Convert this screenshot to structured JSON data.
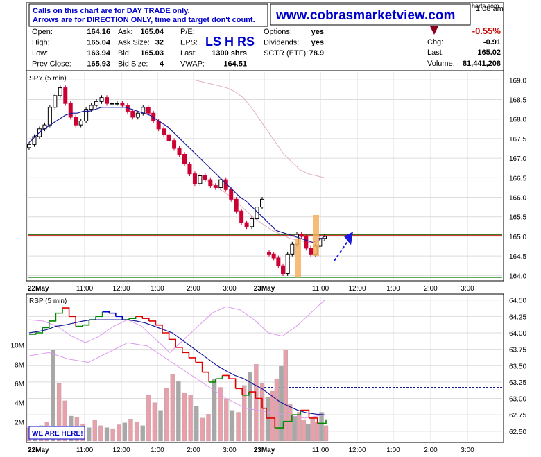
{
  "header": {
    "notice_line1": "Calls on this chart are for DAY TRADE only.",
    "notice_line2": "Arrows are for DIRECTION ONLY, time and target don't count.",
    "website": "www.cobrasmarketview.com",
    "time_fragment": "1:08 am",
    "brand_fragment": "harts.com",
    "pct_change": "-0.55%",
    "chg_label": "Chg:",
    "chg_value": "-0.91",
    "last_label": "Last:",
    "last_value": "165.02",
    "volume_label": "Volume:",
    "volume_value": "81,441,208",
    "pattern_text": "LS H RS",
    "quotes": [
      {
        "label": "Open:",
        "value": "164.16"
      },
      {
        "label": "High:",
        "value": "165.04"
      },
      {
        "label": "Low:",
        "value": "163.94"
      },
      {
        "label": "Prev Close:",
        "value": "165.93"
      }
    ],
    "quotes2": [
      {
        "label": "Ask:",
        "value": "165.04"
      },
      {
        "label": "Ask Size:",
        "value": "32"
      },
      {
        "label": "Bid:",
        "value": "165.03"
      },
      {
        "label": "Bid Size:",
        "value": "4"
      }
    ],
    "quotes3": [
      {
        "label": "P/E:",
        "value": ""
      },
      {
        "label": "EPS:",
        "value": ""
      },
      {
        "label": "Last:",
        "value": "1300 shrs"
      },
      {
        "label": "VWAP:",
        "value": "164.51"
      }
    ],
    "quotes4": [
      {
        "label": "Options:",
        "value": "yes"
      },
      {
        "label": "Dividends:",
        "value": "yes"
      },
      {
        "label": "SCTR (ETF):",
        "value": "78.9"
      }
    ]
  },
  "colors": {
    "up": "#000000",
    "down": "#cc0033",
    "ma": "#1a1a99",
    "band": "#e0b0c0",
    "support": "#007700",
    "resistance": "#cc0000",
    "dashed": "#1a1a99",
    "arrow": "#1a1add",
    "highlight": "#f5b060",
    "rsp_up": "#008800",
    "rsp_down": "#dd0000",
    "rsp_blue": "#0000cc",
    "vol_down": "#e8a0aa",
    "vol_up": "#a8a8a8",
    "band2": "#dd99ee"
  },
  "chart_data": [
    {
      "type": "candlestick",
      "title": "SPY (5 min)",
      "ylim": [
        163.9,
        169.2
      ],
      "y_ticks": [
        "169.0",
        "168.5",
        "168.0",
        "167.5",
        "167.0",
        "166.5",
        "166.0",
        "165.5",
        "165.0",
        "164.5",
        "164.0"
      ],
      "x_ticks": [
        "22May",
        "11:00",
        "12:00",
        "1:00",
        "2:00",
        "3:00",
        "23May",
        "11:00",
        "12:00",
        "1:00",
        "2:00",
        "3:00"
      ],
      "closes": [
        167.35,
        167.55,
        167.75,
        167.85,
        168.3,
        168.6,
        168.8,
        168.4,
        168.05,
        167.85,
        167.95,
        168.25,
        168.35,
        168.45,
        168.55,
        168.4,
        168.4,
        168.4,
        168.35,
        168.2,
        168.05,
        168.15,
        168.3,
        168.15,
        167.95,
        167.75,
        167.6,
        167.45,
        167.25,
        167.1,
        166.85,
        166.6,
        166.35,
        166.55,
        166.45,
        166.3,
        166.25,
        166.45,
        166.2,
        165.95,
        165.65,
        165.35,
        165.25,
        165.45,
        165.75,
        165.95,
        164.55,
        164.45,
        164.25,
        164.05,
        164.55,
        164.8,
        165.05,
        165.0,
        164.7,
        164.55,
        164.75,
        164.95,
        165.0
      ],
      "ma": [
        167.4,
        167.55,
        167.7,
        167.8,
        167.9,
        168.0,
        168.1,
        168.15,
        168.15,
        168.2,
        168.2,
        168.25,
        168.3,
        168.3,
        168.3,
        168.3,
        168.3,
        168.25,
        168.2,
        168.15,
        168.1,
        168.0,
        167.9,
        167.8,
        167.65,
        167.5,
        167.35,
        167.2,
        167.05,
        166.9,
        166.75,
        166.6,
        166.45,
        166.3,
        166.15,
        166.0,
        165.9,
        165.75,
        165.6,
        165.45,
        165.3,
        165.15,
        165.1,
        165.05,
        165.0,
        164.95,
        164.9,
        164.85,
        164.9,
        165.0
      ],
      "band_upper": [
        169.0,
        168.95,
        168.9,
        168.85,
        168.8,
        168.7,
        168.55,
        168.3,
        168.0,
        167.7,
        167.4,
        167.1,
        166.9,
        166.7,
        166.6,
        166.55,
        166.5
      ],
      "band_lower": [
        166.6,
        166.5,
        166.35,
        166.2,
        166.05,
        165.85,
        165.65,
        165.45,
        165.3,
        165.15,
        165.05,
        164.95,
        164.9,
        164.85,
        164.85,
        164.9
      ],
      "support": 163.95,
      "resistance": 165.03,
      "prev_close_line": 165.93
    },
    {
      "type": "line",
      "title": "RSP (5 min)",
      "ylim": [
        62.35,
        64.55
      ],
      "y_ticks": [
        "64.50",
        "64.25",
        "64.00",
        "63.75",
        "63.50",
        "63.25",
        "63.00",
        "62.75",
        "62.50"
      ],
      "vol_ticks": [
        "10M",
        "8M",
        "6M",
        "4M",
        "2M"
      ],
      "vol_max": 12,
      "label_badge": "WE ARE HERE!",
      "dashed_level": 63.17,
      "price": [
        63.98,
        64.0,
        64.08,
        64.18,
        64.3,
        64.38,
        64.25,
        64.1,
        64.12,
        64.2,
        64.25,
        64.32,
        64.3,
        64.25,
        64.2,
        64.22,
        64.25,
        64.22,
        64.18,
        64.12,
        64.0,
        63.9,
        63.78,
        63.7,
        63.62,
        63.55,
        63.4,
        63.25,
        63.3,
        63.35,
        63.3,
        63.15,
        63.05,
        63.1,
        63.0,
        62.85,
        62.7,
        62.55,
        62.65,
        62.75,
        62.82,
        62.7,
        62.62,
        62.68
      ],
      "ma": [
        64.0,
        64.02,
        64.05,
        64.1,
        64.12,
        64.15,
        64.18,
        64.2,
        64.2,
        64.2,
        64.2,
        64.2,
        64.18,
        64.15,
        64.1,
        64.05,
        64.0,
        63.9,
        63.8,
        63.7,
        63.6,
        63.5,
        63.42,
        63.35,
        63.3,
        63.22,
        63.15,
        63.05,
        62.95,
        62.88,
        62.82,
        62.78,
        62.76,
        62.75
      ],
      "volume": [
        1.4,
        1.2,
        1.6,
        2.0,
        9.5,
        6.0,
        4.2,
        2.6,
        2.5,
        1.8,
        1.4,
        2.2,
        1.6,
        1.4,
        1.3,
        1.7,
        1.9,
        2.3,
        2.0,
        1.6,
        4.8,
        4.0,
        3.2,
        5.5,
        7.0,
        6.2,
        5.0,
        4.8,
        3.6,
        2.4,
        2.8,
        6.5,
        5.6,
        4.4,
        3.2,
        3.0,
        5.8,
        7.2,
        8.0,
        6.0,
        4.6,
        5.2,
        6.5,
        7.8,
        9.5,
        3.8,
        2.6,
        3.0,
        2.2,
        1.8,
        2.4,
        2.0,
        3.0,
        1.6
      ]
    }
  ]
}
